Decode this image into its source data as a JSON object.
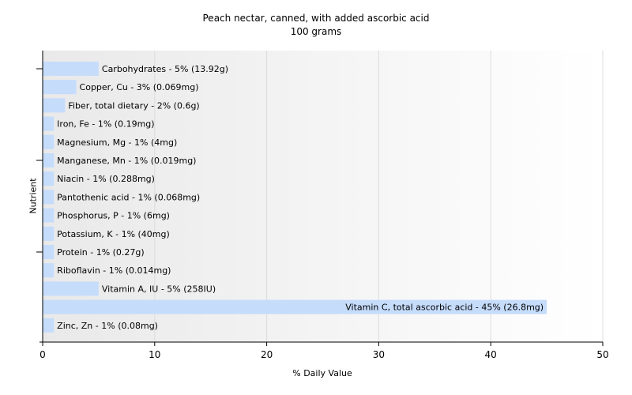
{
  "chart_data": {
    "type": "bar",
    "orientation": "horizontal",
    "title": "Peach nectar, canned, with added ascorbic acid",
    "subtitle": "100 grams",
    "xlabel": "% Daily Value",
    "ylabel": "Nutrient",
    "xlim": [
      0,
      50
    ],
    "xticks": [
      0,
      10,
      20,
      30,
      40,
      50
    ],
    "grid": true,
    "bar_color": "#c6dcfb",
    "categories": [
      "Carbohydrates",
      "Copper, Cu",
      "Fiber, total dietary",
      "Iron, Fe",
      "Magnesium, Mg",
      "Manganese, Mn",
      "Niacin",
      "Pantothenic acid",
      "Phosphorus, P",
      "Potassium, K",
      "Protein",
      "Riboflavin",
      "Vitamin A, IU",
      "Vitamin C, total ascorbic acid",
      "Zinc, Zn"
    ],
    "values": [
      5,
      3,
      2,
      1,
      1,
      1,
      1,
      1,
      1,
      1,
      1,
      1,
      5,
      45,
      1
    ],
    "labels": [
      "Carbohydrates - 5% (13.92g)",
      "Copper, Cu - 3% (0.069mg)",
      "Fiber, total dietary - 2% (0.6g)",
      "Iron, Fe - 1% (0.19mg)",
      "Magnesium, Mg - 1% (4mg)",
      "Manganese, Mn - 1% (0.019mg)",
      "Niacin - 1% (0.288mg)",
      "Pantothenic acid - 1% (0.068mg)",
      "Phosphorus, P - 1% (6mg)",
      "Potassium, K - 1% (40mg)",
      "Protein - 1% (0.27g)",
      "Riboflavin - 1% (0.014mg)",
      "Vitamin A, IU - 5% (258IU)",
      "Vitamin C, total ascorbic acid - 45% (26.8mg)",
      "Zinc, Zn - 1% (0.08mg)"
    ]
  }
}
